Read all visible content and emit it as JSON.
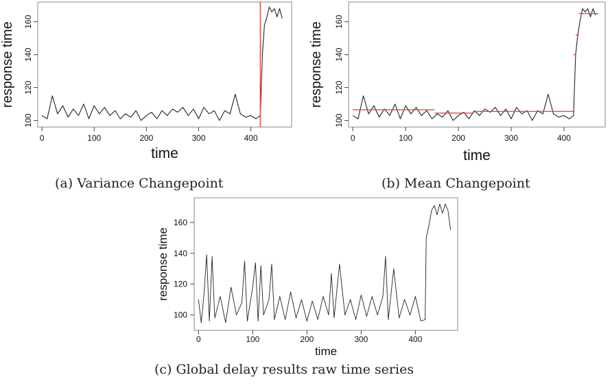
{
  "captions": {
    "a": "(a) Variance Changepoint",
    "b": "(b) Mean Changepoint",
    "c": "(c) Global delay results raw time series"
  },
  "colors": {
    "series": "#222222",
    "changepoint": "#e53935",
    "frame": "#888888"
  },
  "chart_data": [
    {
      "type": "line",
      "xlabel": "time",
      "ylabel": "response time",
      "xlim": [
        -8,
        478
      ],
      "ylim": [
        96,
        172
      ],
      "xticks": [
        0,
        100,
        200,
        300,
        400
      ],
      "yticks": [
        100,
        120,
        140,
        160
      ],
      "grid": false,
      "changepoint_x": 418,
      "series_kind": "smoothed",
      "x": [
        0,
        10,
        20,
        30,
        40,
        50,
        60,
        70,
        80,
        90,
        100,
        110,
        120,
        130,
        140,
        150,
        160,
        170,
        180,
        190,
        200,
        210,
        220,
        230,
        240,
        250,
        260,
        270,
        280,
        290,
        300,
        310,
        320,
        330,
        340,
        350,
        360,
        370,
        380,
        390,
        400,
        410,
        418,
        422,
        426,
        430,
        435,
        440,
        445,
        450,
        455,
        460
      ],
      "y": [
        103,
        101,
        115,
        104,
        109,
        102,
        107,
        103,
        110,
        101,
        109,
        104,
        108,
        103,
        106,
        101,
        104,
        102,
        106,
        100,
        103,
        105,
        101,
        106,
        103,
        107,
        105,
        108,
        103,
        107,
        101,
        108,
        104,
        106,
        100,
        106,
        104,
        116,
        104,
        102,
        103,
        101,
        103,
        140,
        158,
        162,
        169,
        166,
        168,
        163,
        168,
        162
      ]
    },
    {
      "type": "line",
      "xlabel": "time",
      "ylabel": "response time",
      "xlim": [
        -8,
        478
      ],
      "ylim": [
        96,
        172
      ],
      "xticks": [
        0,
        100,
        200,
        300,
        400
      ],
      "yticks": [
        100,
        120,
        140,
        160
      ],
      "grid": false,
      "series_kind": "smoothed",
      "segments": [
        {
          "x": [
            0,
            155
          ],
          "y": [
            106.5,
            106.5
          ]
        },
        {
          "x": [
            155,
            230
          ],
          "y": [
            104.5,
            104.5
          ]
        },
        {
          "x": [
            230,
            418
          ],
          "y": [
            105.5,
            105.5
          ]
        },
        {
          "x": [
            418,
            422
          ],
          "y": [
            140,
            140
          ]
        },
        {
          "x": [
            422,
            428
          ],
          "y": [
            152,
            152
          ]
        },
        {
          "x": [
            428,
            465
          ],
          "y": [
            165,
            165
          ]
        }
      ],
      "x": [
        0,
        10,
        20,
        30,
        40,
        50,
        60,
        70,
        80,
        90,
        100,
        110,
        120,
        130,
        140,
        150,
        160,
        170,
        180,
        190,
        200,
        210,
        220,
        230,
        240,
        250,
        260,
        270,
        280,
        290,
        300,
        310,
        320,
        330,
        340,
        350,
        360,
        370,
        380,
        390,
        400,
        410,
        418,
        422,
        426,
        430,
        435,
        440,
        445,
        450,
        455,
        460
      ],
      "y": [
        103,
        101,
        115,
        104,
        109,
        102,
        107,
        103,
        110,
        101,
        109,
        104,
        108,
        103,
        106,
        101,
        104,
        102,
        106,
        100,
        103,
        105,
        101,
        106,
        103,
        107,
        105,
        108,
        103,
        107,
        101,
        108,
        104,
        106,
        100,
        106,
        104,
        116,
        104,
        102,
        103,
        101,
        103,
        140,
        152,
        160,
        168,
        166,
        168,
        163,
        168,
        164
      ]
    },
    {
      "type": "line",
      "xlabel": "time",
      "ylabel": "response time",
      "xlim": [
        -8,
        478
      ],
      "ylim": [
        90,
        176
      ],
      "xticks": [
        0,
        100,
        200,
        300,
        400
      ],
      "yticks": [
        100,
        120,
        140,
        160
      ],
      "grid": false,
      "series_kind": "raw",
      "x": [
        0,
        5,
        10,
        15,
        20,
        25,
        30,
        40,
        50,
        60,
        70,
        80,
        85,
        90,
        100,
        105,
        110,
        115,
        120,
        130,
        135,
        140,
        150,
        160,
        170,
        180,
        190,
        200,
        210,
        220,
        230,
        240,
        245,
        250,
        260,
        270,
        280,
        290,
        300,
        310,
        320,
        330,
        340,
        345,
        350,
        360,
        370,
        380,
        390,
        400,
        410,
        418,
        420,
        425,
        430,
        435,
        440,
        445,
        450,
        455,
        460,
        465
      ],
      "y": [
        110,
        95,
        113,
        139,
        96,
        138,
        98,
        112,
        95,
        118,
        100,
        108,
        135,
        96,
        118,
        134,
        96,
        132,
        100,
        110,
        133,
        97,
        112,
        97,
        115,
        98,
        110,
        96,
        109,
        97,
        112,
        100,
        127,
        98,
        133,
        100,
        110,
        97,
        113,
        99,
        112,
        100,
        112,
        138,
        97,
        130,
        98,
        110,
        100,
        112,
        96,
        97,
        150,
        158,
        168,
        171,
        165,
        172,
        166,
        172,
        168,
        155
      ]
    }
  ]
}
